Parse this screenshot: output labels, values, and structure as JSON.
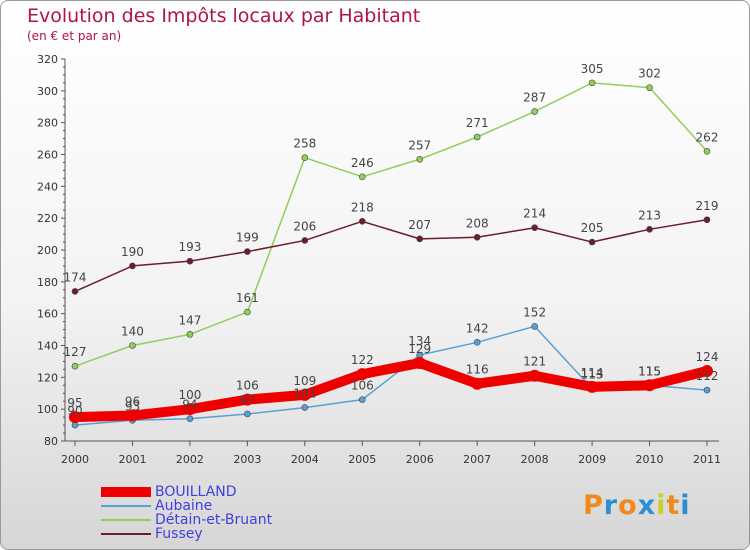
{
  "header": {
    "title": "Evolution des Impôts locaux par Habitant",
    "subtitle": "(en € et par an)"
  },
  "logo": {
    "letters": [
      "P",
      "r",
      "o",
      "x",
      "i",
      "t",
      "i"
    ],
    "colors": [
      "#f08a1c",
      "#2e8fd0",
      "#f08a1c",
      "#2e8fd0",
      "#c9d12a",
      "#f08a1c",
      "#2e8fd0"
    ]
  },
  "chart_data": {
    "type": "line",
    "x": [
      "2000",
      "2001",
      "2002",
      "2003",
      "2004",
      "2005",
      "2006",
      "2007",
      "2008",
      "2009",
      "2010",
      "2011"
    ],
    "ylim": [
      80,
      320
    ],
    "yticks": [
      80,
      100,
      120,
      140,
      160,
      180,
      200,
      220,
      240,
      260,
      280,
      300,
      320
    ],
    "grid": false,
    "legend_position": "bottom-left",
    "series": [
      {
        "name": "BOUILLAND",
        "color": "#ee0000",
        "highlight": true,
        "values": [
          95,
          96,
          100,
          106,
          109,
          122,
          129,
          116,
          121,
          114,
          115,
          124
        ]
      },
      {
        "name": "Aubaine",
        "color": "#5a9fd4",
        "highlight": false,
        "values": [
          90,
          93,
          94,
          97,
          101,
          106,
          134,
          142,
          152,
          113,
          115,
          112
        ]
      },
      {
        "name": "Détain-et-Bruant",
        "color": "#8ed05a",
        "highlight": false,
        "values": [
          127,
          140,
          147,
          161,
          258,
          246,
          257,
          271,
          287,
          305,
          302,
          262
        ]
      },
      {
        "name": "Fussey",
        "color": "#6b1e2a",
        "highlight": false,
        "values": [
          174,
          190,
          193,
          199,
          206,
          218,
          207,
          208,
          214,
          205,
          213,
          219
        ]
      }
    ],
    "data_labels": [
      {
        "series": 3,
        "labels": [
          "174",
          "190",
          "193",
          "199",
          "206",
          "218",
          "207",
          "208",
          "214",
          "205",
          "213",
          "219"
        ]
      },
      {
        "series": 2,
        "labels": [
          "127",
          "140",
          "147",
          "161",
          "258",
          "246",
          "257",
          "271",
          "287",
          "305",
          "302",
          "262"
        ]
      },
      {
        "series": 1,
        "labels": [
          "90",
          "93",
          "94",
          "97",
          "101",
          "106",
          "134",
          "142",
          "152",
          "113",
          "115",
          "112"
        ]
      },
      {
        "series": 0,
        "labels": [
          "95",
          "96",
          "100",
          "106",
          "109",
          "122",
          "129",
          "116",
          "121",
          "114",
          "115",
          "124"
        ]
      }
    ]
  }
}
